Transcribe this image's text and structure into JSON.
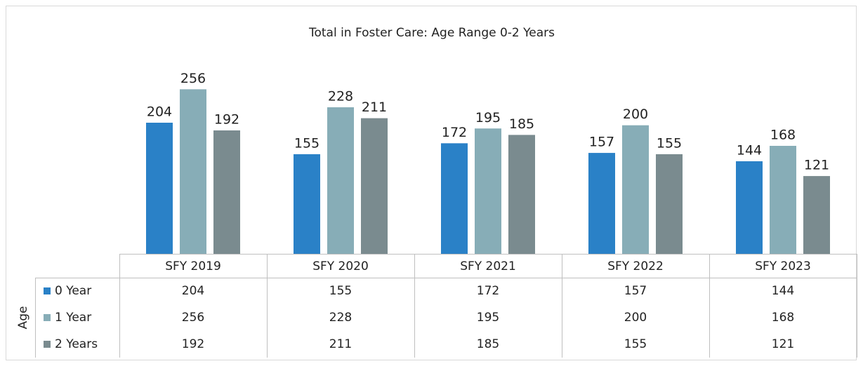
{
  "chart_data": {
    "type": "bar",
    "title": "Total in Foster Care: Age Range 0-2 Years",
    "legend_title": "Age",
    "categories": [
      "SFY 2019",
      "SFY 2020",
      "SFY 2021",
      "SFY 2022",
      "SFY 2023"
    ],
    "series": [
      {
        "name": "0 Year",
        "color": "#2a81c7",
        "values": [
          204,
          155,
          172,
          157,
          144
        ]
      },
      {
        "name": "1 Year",
        "color": "#87adb7",
        "values": [
          256,
          228,
          195,
          200,
          168
        ]
      },
      {
        "name": "2 Years",
        "color": "#7a8b8f",
        "values": [
          192,
          211,
          185,
          155,
          121
        ]
      }
    ],
    "ylim": [
      0,
      300
    ]
  }
}
